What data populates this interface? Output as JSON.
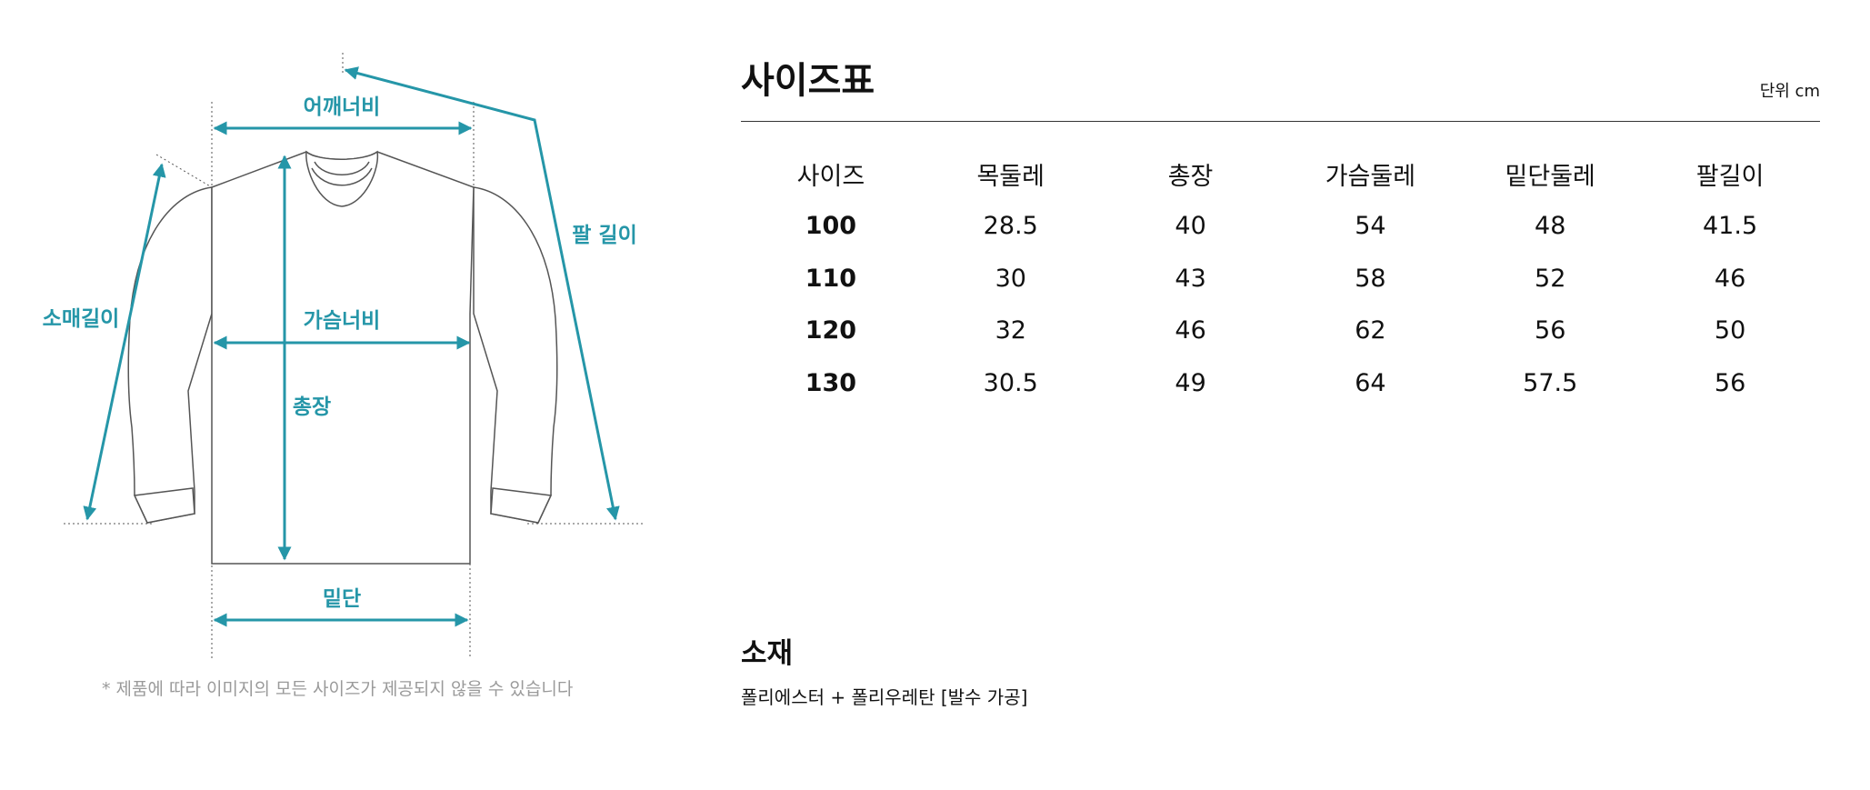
{
  "diagram": {
    "labels": {
      "shoulder": "어깨너비",
      "arm": "팔 길이",
      "sleeve": "소매길이",
      "chest": "가슴너비",
      "length": "총장",
      "hem": "밑단"
    },
    "accent_color": "#2596a8",
    "disclaimer": "* 제품에 따라 이미지의 모든 사이즈가 제공되지 않을 수 있습니다"
  },
  "size_chart": {
    "title": "사이즈표",
    "unit": "단위 cm",
    "headers": [
      "사이즈",
      "목둘레",
      "총장",
      "가슴둘레",
      "밑단둘레",
      "팔길이"
    ],
    "rows": [
      [
        "100",
        "28.5",
        "40",
        "54",
        "48",
        "41.5"
      ],
      [
        "110",
        "30",
        "43",
        "58",
        "52",
        "46"
      ],
      [
        "120",
        "32",
        "46",
        "62",
        "56",
        "50"
      ],
      [
        "130",
        "30.5",
        "49",
        "64",
        "57.5",
        "56"
      ]
    ]
  },
  "material": {
    "title": "소재",
    "text": "폴리에스터 + 폴리우레탄 [발수 가공]"
  }
}
